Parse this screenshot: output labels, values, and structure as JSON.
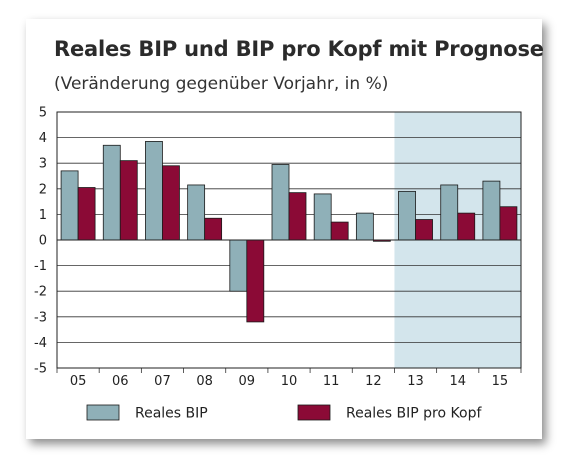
{
  "chart_data": {
    "type": "bar",
    "title": "Reales BIP und BIP pro Kopf mit Prognose",
    "subtitle": "(Veränderung gegenüber Vorjahr, in %)",
    "categories": [
      "05",
      "06",
      "07",
      "08",
      "09",
      "10",
      "11",
      "12",
      "13",
      "14",
      "15"
    ],
    "series": [
      {
        "name": "Reales BIP",
        "color": "#8fb0b8",
        "values": [
          2.7,
          3.7,
          3.85,
          2.15,
          -2.0,
          2.95,
          1.8,
          1.05,
          1.9,
          2.15,
          2.3
        ]
      },
      {
        "name": "Reales BIP pro Kopf",
        "color": "#8b0a36",
        "values": [
          2.05,
          3.1,
          2.9,
          0.85,
          -3.2,
          1.85,
          0.7,
          -0.05,
          0.8,
          1.05,
          1.3
        ]
      }
    ],
    "ylim": [
      -5,
      5
    ],
    "yticks": [
      5,
      4,
      3,
      2,
      1,
      0,
      -1,
      -2,
      -3,
      -4,
      -5
    ],
    "grid": true,
    "forecast_from_index": 8,
    "forecast_shade_color": "#d3e5ec",
    "legend_position": "bottom"
  }
}
